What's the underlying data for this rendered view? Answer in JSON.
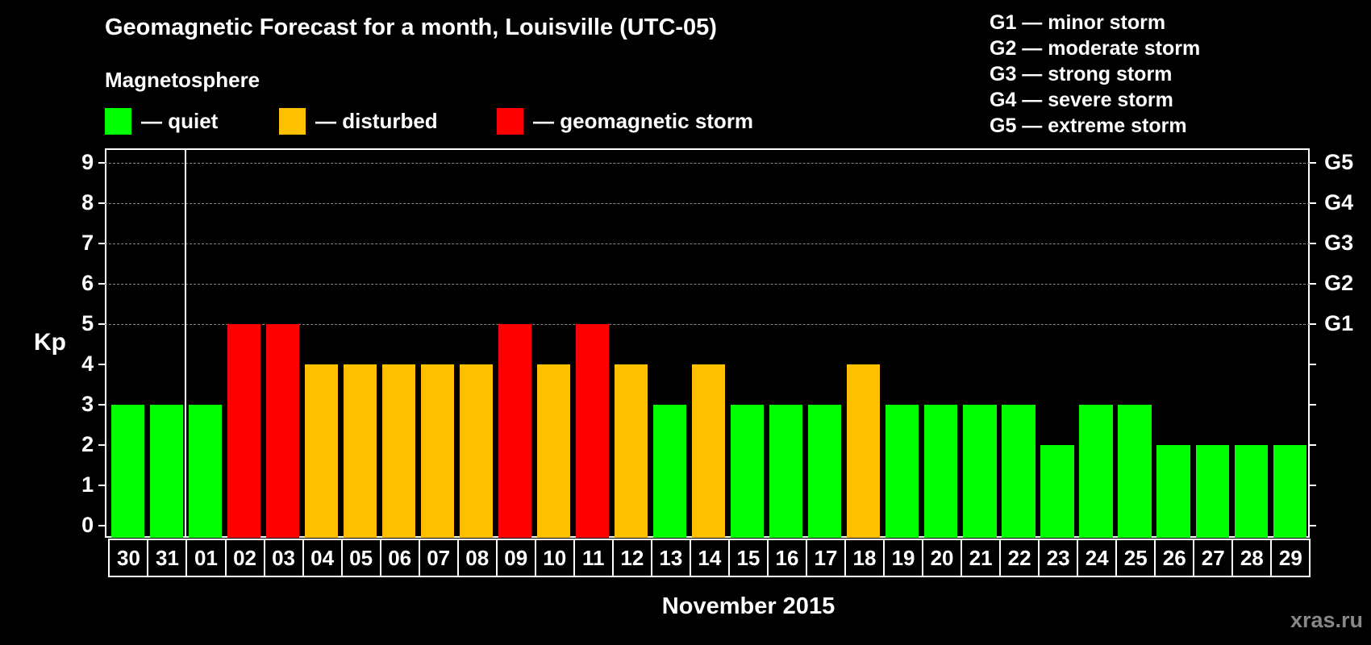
{
  "header": {
    "title": "Geomagnetic Forecast for a month, Louisville (UTC-05)",
    "subtitle": "Magnetosphere",
    "legend": [
      {
        "label": "— quiet",
        "color": "#00ff00"
      },
      {
        "label": "— disturbed",
        "color": "#ffc000"
      },
      {
        "label": "— geomagnetic storm",
        "color": "#ff0000"
      }
    ]
  },
  "storm_scale": [
    "G1 — minor storm",
    "G2 — moderate storm",
    "G3 — strong storm",
    "G4 — severe storm",
    "G5 — extreme storm"
  ],
  "axes": {
    "ylabel": "Kp",
    "yticks": [
      "0",
      "1",
      "2",
      "3",
      "4",
      "5",
      "6",
      "7",
      "8",
      "9"
    ],
    "right_ticks": [
      {
        "kp": 5,
        "label": "G1"
      },
      {
        "kp": 6,
        "label": "G2"
      },
      {
        "kp": 7,
        "label": "G3"
      },
      {
        "kp": 8,
        "label": "G4"
      },
      {
        "kp": 9,
        "label": "G5"
      }
    ],
    "xlabel": "November 2015"
  },
  "watermark": "xras.ru",
  "chart_data": {
    "type": "bar",
    "title": "Geomagnetic Forecast for a month, Louisville (UTC-05)",
    "xlabel": "November 2015",
    "ylabel": "Kp",
    "ylim": [
      0,
      9
    ],
    "grid": "dashed horizontal at Kp 5-9",
    "categories": [
      "30",
      "31",
      "01",
      "02",
      "03",
      "04",
      "05",
      "06",
      "07",
      "08",
      "09",
      "10",
      "11",
      "12",
      "13",
      "14",
      "15",
      "16",
      "17",
      "18",
      "19",
      "20",
      "21",
      "22",
      "23",
      "24",
      "25",
      "26",
      "27",
      "28",
      "29"
    ],
    "values": [
      3,
      3,
      3,
      5,
      5,
      4,
      4,
      4,
      4,
      4,
      5,
      4,
      5,
      4,
      3,
      4,
      3,
      3,
      3,
      4,
      3,
      3,
      3,
      3,
      2,
      3,
      3,
      2,
      2,
      2,
      2
    ],
    "status": [
      "quiet",
      "quiet",
      "quiet",
      "storm",
      "storm",
      "disturbed",
      "disturbed",
      "disturbed",
      "disturbed",
      "disturbed",
      "storm",
      "disturbed",
      "storm",
      "disturbed",
      "quiet",
      "disturbed",
      "quiet",
      "quiet",
      "quiet",
      "disturbed",
      "quiet",
      "quiet",
      "quiet",
      "quiet",
      "quiet",
      "quiet",
      "quiet",
      "quiet",
      "quiet",
      "quiet",
      "quiet"
    ],
    "colors": {
      "quiet": "#00ff00",
      "disturbed": "#ffc000",
      "storm": "#ff0000"
    },
    "legend": [
      "quiet",
      "disturbed",
      "geomagnetic storm"
    ],
    "right_axis": {
      "5": "G1",
      "6": "G2",
      "7": "G3",
      "8": "G4",
      "9": "G5"
    }
  }
}
